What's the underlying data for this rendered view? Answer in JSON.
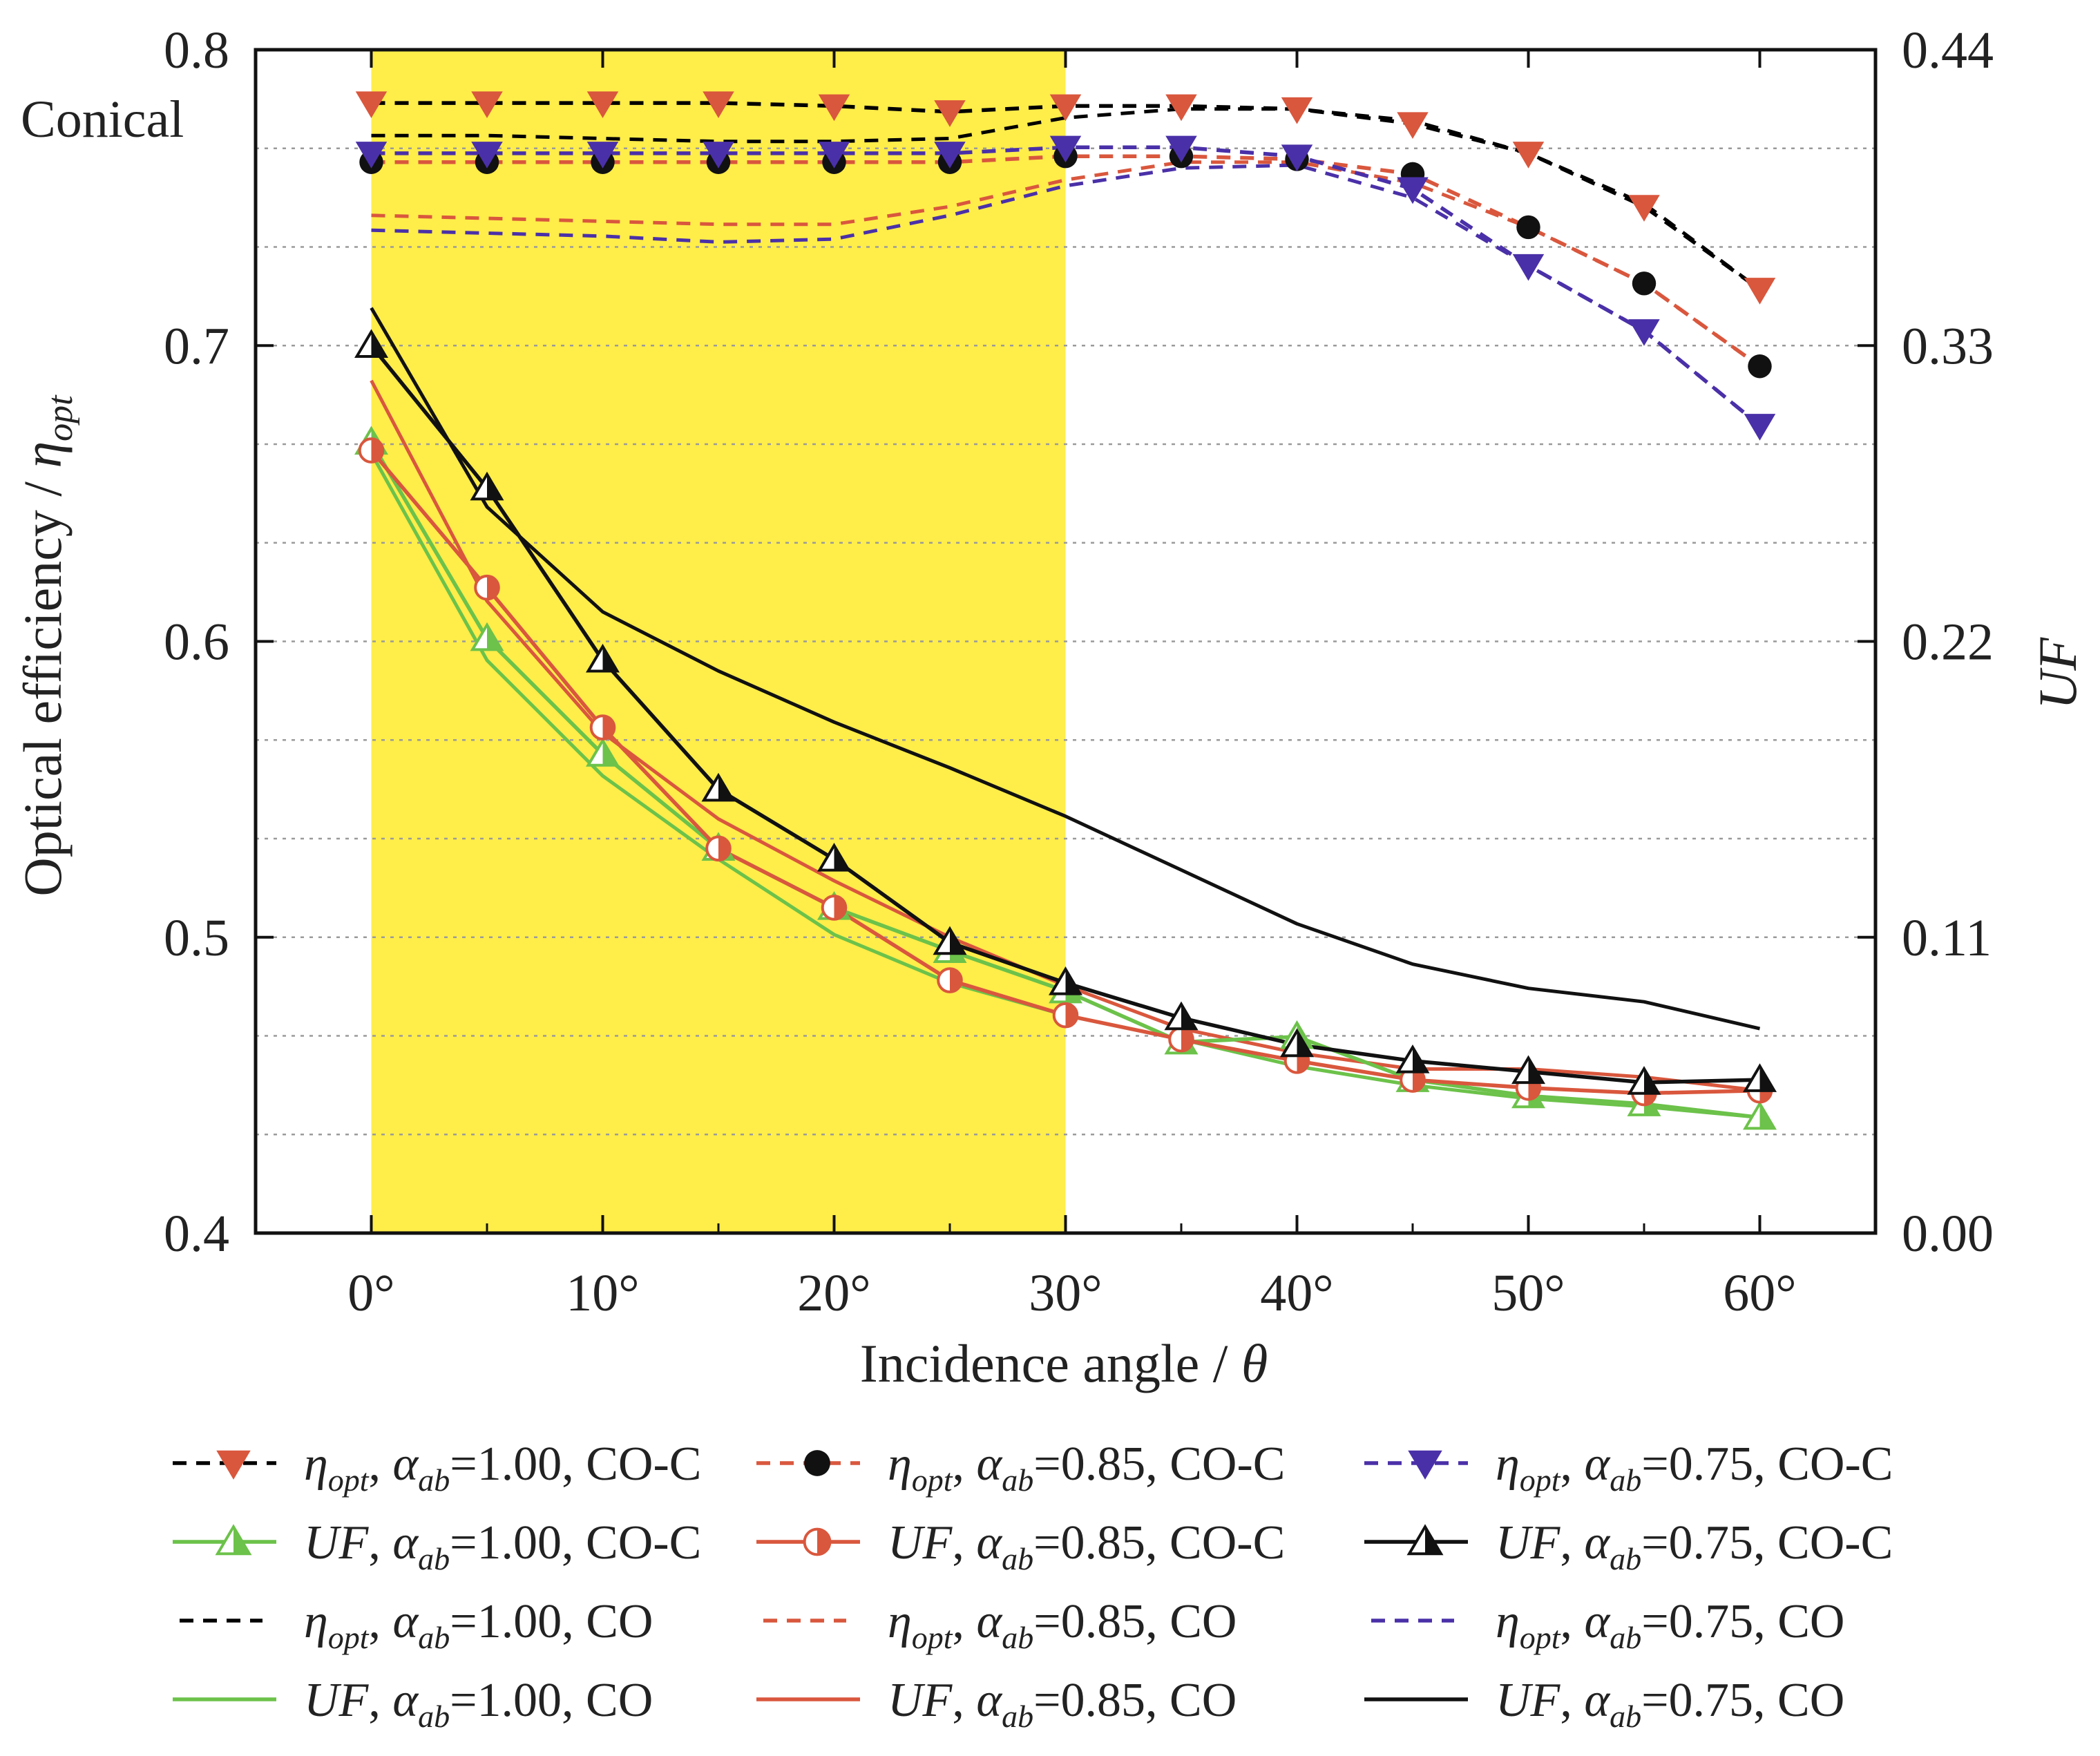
{
  "chart_data": {
    "type": "line",
    "annotation": "Conical",
    "xlabel": "Incidence angle / θ",
    "ylabel_left": "Optical efficiency / η_opt",
    "ylabel_right": "UF",
    "x": [
      0,
      5,
      10,
      15,
      20,
      25,
      30,
      35,
      40,
      45,
      50,
      55,
      60
    ],
    "xlim": [
      -5,
      65
    ],
    "xticks": [
      0,
      10,
      20,
      30,
      40,
      50,
      60
    ],
    "xtick_labels": [
      "0°",
      "10°",
      "20°",
      "30°",
      "40°",
      "50°",
      "60°"
    ],
    "ylim_left": [
      0.4,
      0.8
    ],
    "yticks_left": [
      0.4,
      0.5,
      0.6,
      0.7,
      0.8
    ],
    "ytick_labels_left": [
      "0.4",
      "0.5",
      "0.6",
      "0.7",
      "0.8"
    ],
    "ylim_right": [
      0.0,
      0.44
    ],
    "yticks_right": [
      0.0,
      0.11,
      0.22,
      0.33,
      0.44
    ],
    "ytick_labels_right": [
      "0.00",
      "0.11",
      "0.22",
      "0.33",
      "0.44"
    ],
    "highlight_region": {
      "x_from": 0,
      "x_to": 30,
      "color": "#ffed4a"
    },
    "grid": true,
    "legend_position": "bottom",
    "series": [
      {
        "id": "eta100coc",
        "name_pre": "η",
        "name_sub": "opt",
        "name_sep": ", ",
        "name_alpha": "α",
        "name_alpha_sub": "ab",
        "name_post": "=1.00, CO-C",
        "axis": "left",
        "line": "dashed",
        "color": "#000000",
        "marker": "tri-down",
        "marker_color": "#d9573d",
        "values": [
          0.782,
          0.782,
          0.782,
          0.782,
          0.781,
          0.779,
          0.781,
          0.781,
          0.78,
          0.775,
          0.765,
          0.747,
          0.719
        ]
      },
      {
        "id": "eta085coc",
        "name_pre": "η",
        "name_sub": "opt",
        "name_sep": ", ",
        "name_alpha": "α",
        "name_alpha_sub": "ab",
        "name_post": "=0.85, CO-C",
        "axis": "left",
        "line": "dashed",
        "color": "#d9573d",
        "marker": "circle",
        "marker_color": "#111111",
        "values": [
          0.762,
          0.762,
          0.762,
          0.762,
          0.762,
          0.762,
          0.764,
          0.764,
          0.763,
          0.758,
          0.74,
          0.721,
          0.693
        ]
      },
      {
        "id": "eta075coc",
        "name_pre": "η",
        "name_sub": "opt",
        "name_sep": ", ",
        "name_alpha": "α",
        "name_alpha_sub": "ab",
        "name_post": "=0.75, CO-C",
        "axis": "left",
        "line": "dashed",
        "color": "#4a30a8",
        "marker": "tri-down",
        "marker_color": "#4a30a8",
        "values": [
          0.765,
          0.765,
          0.765,
          0.765,
          0.765,
          0.765,
          0.767,
          0.767,
          0.764,
          0.753,
          0.727,
          0.705,
          0.673
        ]
      },
      {
        "id": "uf100coc",
        "name_pre": "UF",
        "name_sub": "",
        "name_sep": ", ",
        "name_alpha": "α",
        "name_alpha_sub": "ab",
        "name_post": "=1.00, CO-C",
        "axis": "right",
        "line": "solid",
        "color": "#6cc24a",
        "marker": "tri-up-half",
        "marker_color": "#6cc24a",
        "values": [
          0.294,
          0.221,
          0.178,
          0.143,
          0.121,
          0.105,
          0.09,
          0.071,
          0.073,
          0.057,
          0.051,
          0.048,
          0.043
        ]
      },
      {
        "id": "uf085coc",
        "name_pre": "UF",
        "name_sub": "",
        "name_sep": ", ",
        "name_alpha": "α",
        "name_alpha_sub": "ab",
        "name_post": "=0.85, CO-C",
        "axis": "right",
        "line": "solid",
        "color": "#d9573d",
        "marker": "circle-half",
        "marker_color": "#d9573d",
        "values": [
          0.291,
          0.24,
          0.188,
          0.143,
          0.121,
          0.094,
          0.081,
          0.072,
          0.064,
          0.057,
          0.054,
          0.052,
          0.053
        ]
      },
      {
        "id": "uf075coc",
        "name_pre": "UF",
        "name_sub": "",
        "name_sep": ", ",
        "name_alpha": "α",
        "name_alpha_sub": "ab",
        "name_post": "=0.75, CO-C",
        "axis": "right",
        "line": "solid",
        "color": "#111111",
        "marker": "tri-up-half",
        "marker_color": "#111111",
        "values": [
          0.33,
          0.277,
          0.213,
          0.165,
          0.139,
          0.108,
          0.093,
          0.08,
          0.07,
          0.064,
          0.06,
          0.056,
          0.057
        ]
      },
      {
        "id": "eta100co",
        "name_pre": "η",
        "name_sub": "opt",
        "name_sep": ", ",
        "name_alpha": "α",
        "name_alpha_sub": "ab",
        "name_post": "=1.00, CO",
        "axis": "left",
        "line": "dashed",
        "color": "#000000",
        "marker": "none",
        "marker_color": "",
        "values": [
          0.771,
          0.771,
          0.77,
          0.769,
          0.769,
          0.77,
          0.777,
          0.78,
          0.78,
          0.776,
          0.765,
          0.748,
          0.719
        ]
      },
      {
        "id": "eta085co",
        "name_pre": "η",
        "name_sub": "opt",
        "name_sep": ", ",
        "name_alpha": "α",
        "name_alpha_sub": "ab",
        "name_post": "=0.85, CO",
        "axis": "left",
        "line": "dashed",
        "color": "#d9573d",
        "marker": "none",
        "marker_color": "",
        "values": [
          0.744,
          0.743,
          0.742,
          0.741,
          0.741,
          0.747,
          0.756,
          0.762,
          0.762,
          0.755,
          0.74,
          0.721,
          0.693
        ]
      },
      {
        "id": "eta075co",
        "name_pre": "η",
        "name_sub": "opt",
        "name_sep": ", ",
        "name_alpha": "α",
        "name_alpha_sub": "ab",
        "name_post": "=0.75, CO",
        "axis": "left",
        "line": "dashed",
        "color": "#4a30a8",
        "marker": "none",
        "marker_color": "",
        "values": [
          0.739,
          0.738,
          0.737,
          0.735,
          0.736,
          0.744,
          0.754,
          0.76,
          0.761,
          0.75,
          0.727,
          0.705,
          0.673
        ]
      },
      {
        "id": "uf100co",
        "name_pre": "UF",
        "name_sub": "",
        "name_sep": ", ",
        "name_alpha": "α",
        "name_alpha_sub": "ab",
        "name_post": "=1.00, CO",
        "axis": "right",
        "line": "solid",
        "color": "#6cc24a",
        "marker": "none",
        "marker_color": "",
        "values": [
          0.29,
          0.213,
          0.17,
          0.139,
          0.111,
          0.093,
          0.081,
          0.072,
          0.062,
          0.055,
          0.05,
          0.047,
          0.043
        ]
      },
      {
        "id": "uf085co",
        "name_pre": "UF",
        "name_sub": "",
        "name_sep": ", ",
        "name_alpha": "α",
        "name_alpha_sub": "ab",
        "name_post": "=0.85, CO",
        "axis": "right",
        "line": "solid",
        "color": "#d9573d",
        "marker": "none",
        "marker_color": "",
        "values": [
          0.317,
          0.235,
          0.186,
          0.154,
          0.131,
          0.11,
          0.092,
          0.076,
          0.067,
          0.061,
          0.061,
          0.058,
          0.053
        ]
      },
      {
        "id": "uf075co",
        "name_pre": "UF",
        "name_sub": "",
        "name_sep": ", ",
        "name_alpha": "α",
        "name_alpha_sub": "ab",
        "name_post": "=0.75, CO",
        "axis": "right",
        "line": "solid",
        "color": "#111111",
        "marker": "none",
        "marker_color": "",
        "values": [
          0.344,
          0.27,
          0.231,
          0.209,
          0.19,
          0.173,
          0.155,
          0.135,
          0.115,
          0.1,
          0.091,
          0.086,
          0.076
        ]
      }
    ]
  }
}
